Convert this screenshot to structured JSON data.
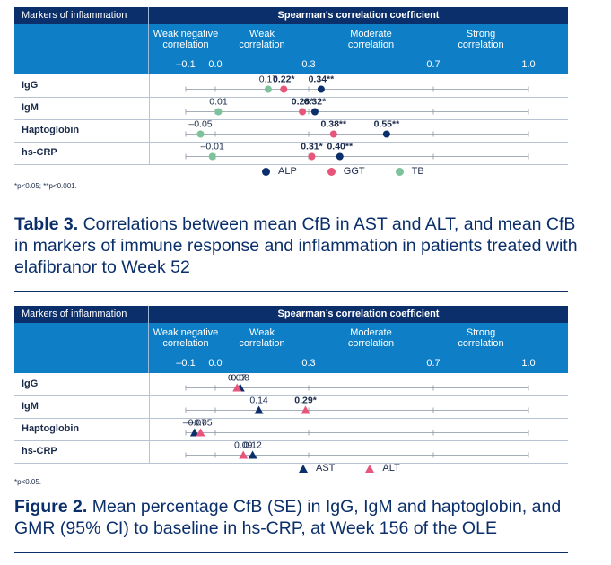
{
  "panel1": {
    "header_left": "Markers of inflammation",
    "header_right": "Spearman’s correlation coefficient",
    "categories": [
      {
        "text": "Weak negative\ncorrelation",
        "at": -0.1
      },
      {
        "text": "Weak\ncorrelation",
        "at": 0.15
      },
      {
        "text": "Moderate\ncorrelation",
        "at": 0.5
      },
      {
        "text": "Strong\ncorrelation",
        "at": 0.85
      }
    ],
    "ticks": [
      "–0.1",
      "0.0",
      "0.3",
      "0.7",
      "1.0"
    ],
    "rows": [
      "IgG",
      "IgM",
      "Haptoglobin",
      "hs-CRP"
    ],
    "footnote": "*p<0.05; **p<0.001.",
    "legend": [
      {
        "label": "ALP",
        "color": "#0b2f6b"
      },
      {
        "label": "GGT",
        "color": "#e8557a"
      },
      {
        "label": "TB",
        "color": "#7cc29a"
      }
    ]
  },
  "caption1": {
    "bold": "Table 3.",
    "text": " Correlations between mean CfB in AST and ALT, and mean CfB in markers of immune response and inflammation in patients treated with elafibranor to Week 52"
  },
  "panel2": {
    "header_left": "Markers of inflammation",
    "header_right": "Spearman’s correlation coefficient",
    "categories": [
      {
        "text": "Weak negative\ncorrelation",
        "at": -0.1
      },
      {
        "text": "Weak\ncorrelation",
        "at": 0.15
      },
      {
        "text": "Moderate\ncorrelation",
        "at": 0.5
      },
      {
        "text": "Strong\ncorrelation",
        "at": 0.85
      }
    ],
    "ticks": [
      "–0.1",
      "0.0",
      "0.3",
      "0.7",
      "1.0"
    ],
    "rows": [
      "IgG",
      "IgM",
      "Haptoglobin",
      "hs-CRP"
    ],
    "footnote": "*p<0.05.",
    "legend": [
      {
        "label": "AST",
        "color": "#0b2f6b"
      },
      {
        "label": "ALT",
        "color": "#e8557a"
      }
    ]
  },
  "caption2": {
    "bold": "Figure 2.",
    "text": " Mean percentage CfB (SE) in IgG, IgM and haptoglobin, and GMR (95% CI) to baseline in hs-CRP, at Week 156 of the OLE"
  },
  "chart_data": [
    {
      "type": "scatter",
      "title": "",
      "xlabel": "Spearman’s correlation coefficient",
      "xlim": [
        -0.1,
        1.0
      ],
      "xticks": [
        -0.1,
        0.0,
        0.3,
        0.7,
        1.0
      ],
      "categories": [
        "IgG",
        "IgM",
        "Haptoglobin",
        "hs-CRP"
      ],
      "series": [
        {
          "name": "ALP",
          "color": "#0b2f6b",
          "marker": "circle",
          "values": [
            0.34,
            0.32,
            0.55,
            0.4
          ],
          "labels": [
            "0.34**",
            "0.32*",
            "0.55**",
            "0.40**"
          ],
          "bold": [
            true,
            true,
            true,
            true
          ]
        },
        {
          "name": "GGT",
          "color": "#e8557a",
          "marker": "circle",
          "values": [
            0.22,
            0.28,
            0.38,
            0.31
          ],
          "labels": [
            "0.22*",
            "0.28*",
            "0.38**",
            "0.31*"
          ],
          "bold": [
            true,
            true,
            true,
            true
          ]
        },
        {
          "name": "TB",
          "color": "#7cc29a",
          "marker": "circle",
          "values": [
            0.17,
            0.01,
            -0.05,
            -0.01
          ],
          "labels": [
            "0.17",
            "0.01",
            "–0.05",
            "–0.01"
          ],
          "bold": [
            false,
            false,
            false,
            false
          ]
        }
      ]
    },
    {
      "type": "scatter",
      "title": "",
      "xlabel": "Spearman’s correlation coefficient",
      "xlim": [
        -0.1,
        1.0
      ],
      "xticks": [
        -0.1,
        0.0,
        0.3,
        0.7,
        1.0
      ],
      "categories": [
        "IgG",
        "IgM",
        "Haptoglobin",
        "hs-CRP"
      ],
      "series": [
        {
          "name": "AST",
          "color": "#0b2f6b",
          "marker": "triangle",
          "values": [
            0.08,
            0.14,
            -0.07,
            0.12
          ],
          "labels": [
            "0.08",
            "0.14",
            "–0.07",
            "0.12"
          ],
          "bold": [
            false,
            false,
            false,
            false
          ]
        },
        {
          "name": "ALT",
          "color": "#e8557a",
          "marker": "triangle",
          "values": [
            0.07,
            0.29,
            -0.05,
            0.09
          ],
          "labels": [
            "0.07",
            "0.29*",
            "–0.05",
            "0.09"
          ],
          "bold": [
            false,
            true,
            false,
            false
          ]
        }
      ]
    }
  ]
}
